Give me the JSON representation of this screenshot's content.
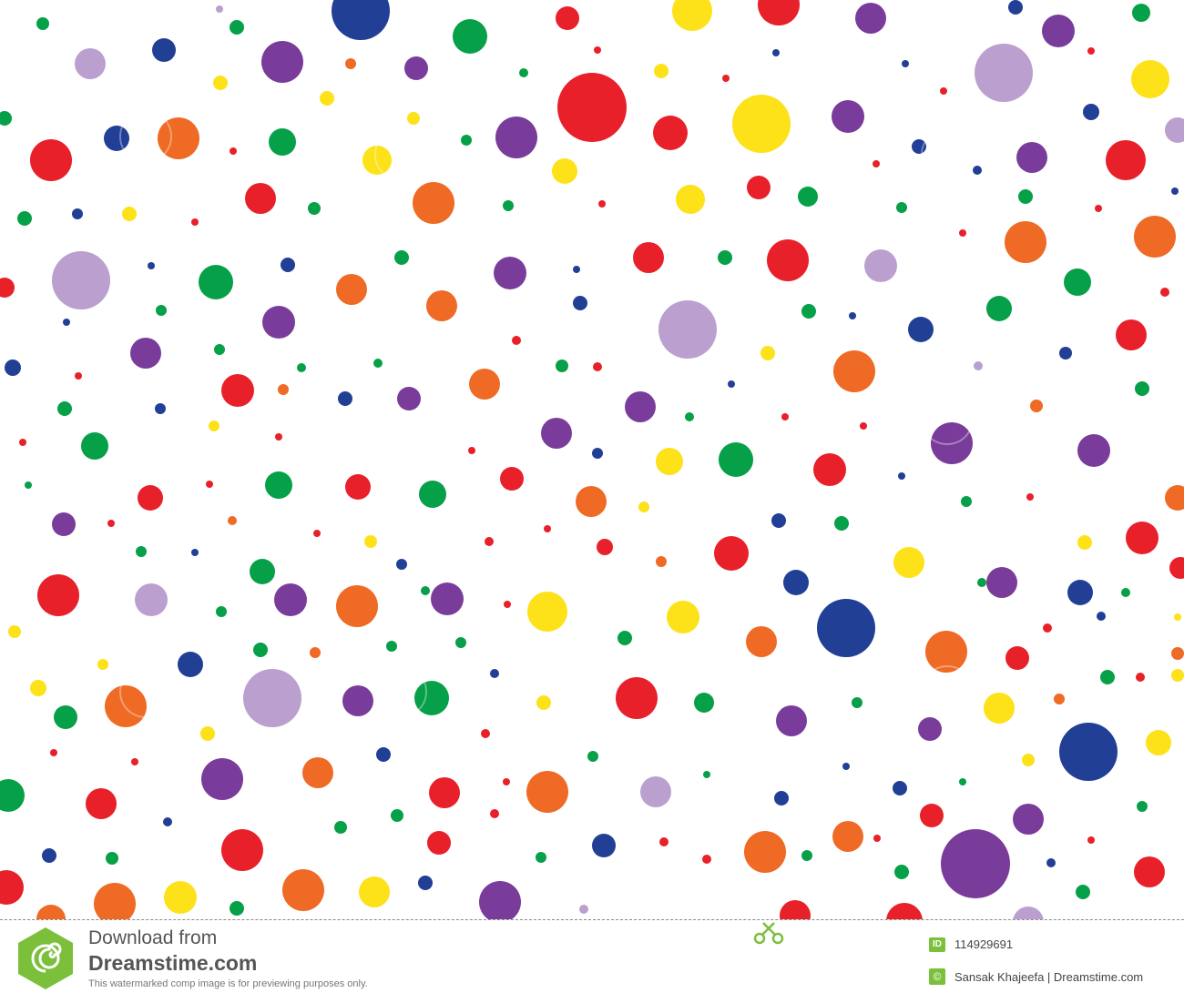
{
  "palette": {
    "red": "#e8202a",
    "orange": "#ef6a25",
    "yellow": "#fde119",
    "green": "#06a048",
    "blue": "#213f95",
    "purple": "#7a3c9b",
    "lavender": "#bba0cf"
  },
  "watermark": {
    "line1": "Download from",
    "line2": "Dreamstime.com",
    "note": "This watermarked comp image is for previewing purposes only.",
    "id_label": "ID",
    "id_value": "114929691",
    "copyright_symbol": "©",
    "credit": "Sansak Khajeefa | Dreamstime.com",
    "logo_icon": "dreamstime-spiral-logo",
    "cut_icon": "scissors-icon"
  }
}
